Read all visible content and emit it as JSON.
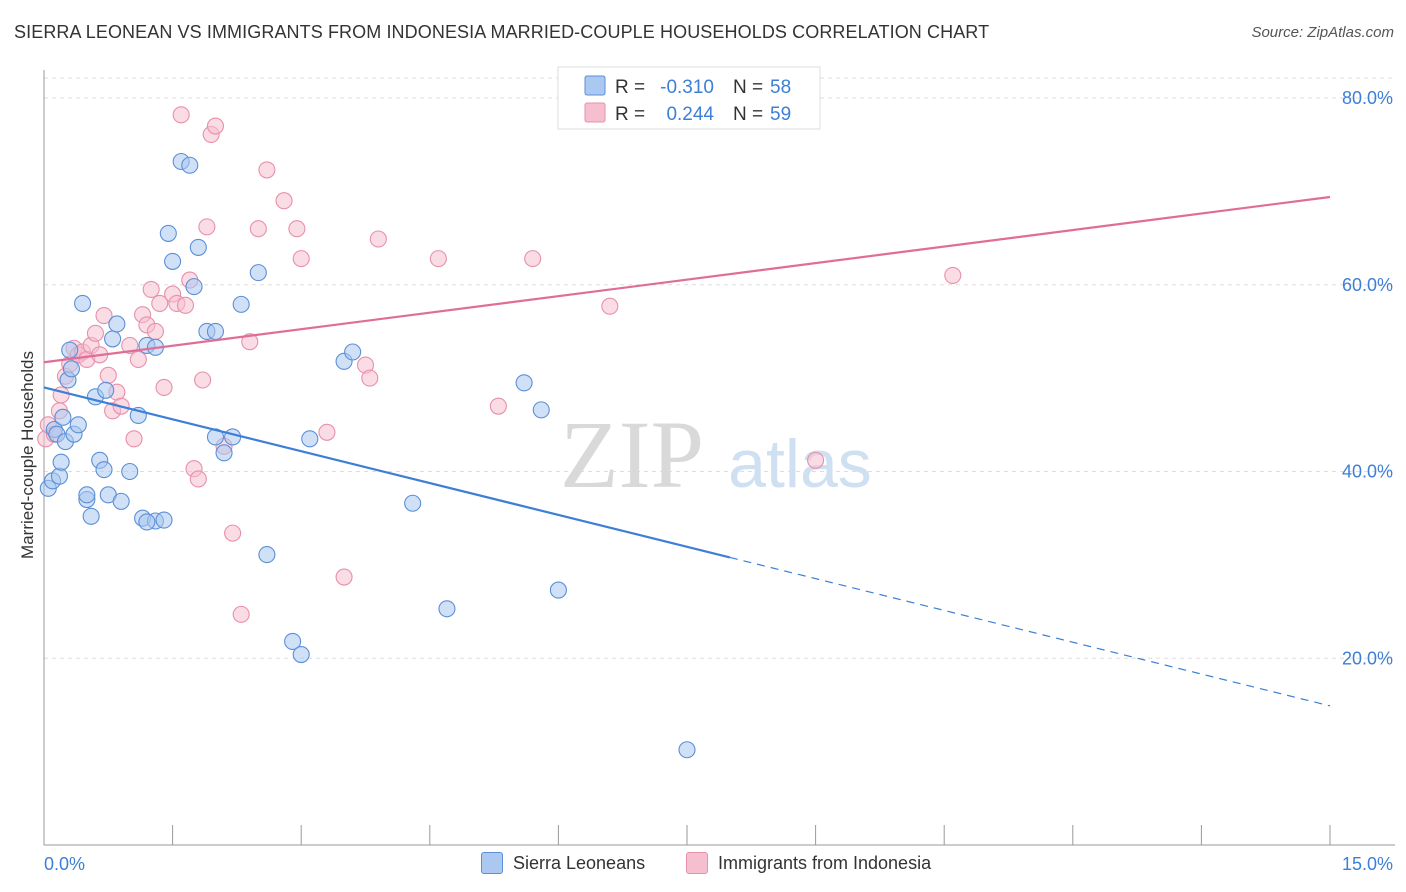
{
  "title": "SIERRA LEONEAN VS IMMIGRANTS FROM INDONESIA MARRIED-COUPLE HOUSEHOLDS CORRELATION CHART",
  "source": "Source: ZipAtlas.com",
  "watermark": {
    "zip": "ZIP",
    "atlas": "atlas"
  },
  "colors": {
    "blue_fill": "#aac8f0",
    "blue_stroke": "#5b8fd6",
    "blue_line": "#3d7fd6",
    "pink_fill": "#f6bfd0",
    "pink_stroke": "#e88fac",
    "pink_line": "#e06d98",
    "value_text": "#3d7fd6",
    "grid": "#dddddd"
  },
  "legend_stats": [
    {
      "r_label": "R =",
      "r_value": "-0.310",
      "n_label": "N =",
      "n_value": "58"
    },
    {
      "r_label": "R =",
      "r_value": "0.244",
      "n_label": "N =",
      "n_value": "59"
    }
  ],
  "chart_data": {
    "type": "scatter",
    "title": "SIERRA LEONEAN VS IMMIGRANTS FROM INDONESIA MARRIED-COUPLE HOUSEHOLDS CORRELATION CHART",
    "xlabel": "",
    "ylabel": "Married-couple Households",
    "xlim": [
      0,
      15
    ],
    "ylim": [
      0,
      83
    ],
    "x_tick_labels": [
      "0.0%",
      "15.0%"
    ],
    "y_ticks": [
      20,
      40,
      60,
      80
    ],
    "y_tick_labels": [
      "20.0%",
      "40.0%",
      "60.0%",
      "80.0%"
    ],
    "grid": "horizontal dashed",
    "legend_position": "bottom",
    "series": [
      {
        "name": "Sierra Leoneans",
        "color": "#aac8f0",
        "r": -0.31,
        "n": 58,
        "trend": {
          "x": [
            0.0,
            8.0
          ],
          "y": [
            49.0,
            30.8
          ]
        },
        "trend_extension": {
          "x": [
            8.0,
            15.0
          ],
          "y": [
            30.8,
            14.9
          ]
        },
        "x": [
          0.05,
          0.1,
          0.12,
          0.15,
          0.18,
          0.2,
          0.22,
          0.25,
          0.28,
          0.3,
          0.32,
          0.35,
          0.4,
          0.45,
          0.5,
          0.5,
          0.55,
          0.6,
          0.65,
          0.7,
          0.72,
          0.75,
          0.8,
          0.85,
          0.9,
          1.0,
          1.1,
          1.15,
          1.2,
          1.3,
          1.3,
          1.4,
          1.45,
          1.5,
          1.6,
          1.7,
          1.75,
          1.8,
          1.9,
          2.0,
          2.0,
          2.1,
          2.2,
          2.3,
          2.5,
          2.6,
          2.9,
          3.0,
          3.1,
          3.5,
          3.6,
          4.3,
          4.7,
          5.6,
          5.8,
          6.0,
          7.5,
          1.2
        ],
        "y": [
          38.2,
          39.0,
          44.5,
          44.0,
          39.5,
          41.0,
          45.8,
          43.2,
          49.8,
          53.0,
          51.0,
          44.0,
          45.0,
          58.0,
          37.0,
          37.5,
          35.2,
          48.0,
          41.2,
          40.2,
          48.7,
          37.5,
          54.2,
          55.8,
          36.8,
          40.0,
          46.0,
          35.0,
          53.5,
          53.3,
          34.7,
          34.8,
          65.5,
          62.5,
          73.2,
          72.8,
          59.8,
          64.0,
          55.0,
          55.0,
          43.7,
          42.0,
          43.7,
          57.9,
          61.3,
          31.1,
          21.8,
          20.4,
          43.5,
          51.8,
          52.8,
          36.6,
          25.3,
          49.5,
          46.6,
          27.3,
          10.2,
          34.6
        ]
      },
      {
        "name": "Immigrants from Indonesia",
        "color": "#f6bfd0",
        "r": 0.244,
        "n": 59,
        "trend": {
          "x": [
            0.0,
            15.0
          ],
          "y": [
            51.7,
            69.4
          ]
        },
        "x": [
          0.02,
          0.05,
          0.12,
          0.18,
          0.2,
          0.25,
          0.3,
          0.35,
          0.4,
          0.45,
          0.5,
          0.55,
          0.6,
          0.65,
          0.7,
          0.75,
          0.8,
          0.85,
          0.9,
          1.0,
          1.05,
          1.1,
          1.15,
          1.2,
          1.25,
          1.3,
          1.35,
          1.4,
          1.5,
          1.55,
          1.6,
          1.65,
          1.7,
          1.75,
          1.8,
          1.85,
          1.9,
          1.95,
          2.0,
          2.1,
          2.2,
          2.3,
          2.4,
          2.5,
          2.6,
          2.8,
          2.95,
          3.0,
          3.3,
          3.5,
          3.75,
          3.8,
          3.9,
          4.6,
          5.3,
          5.7,
          6.6,
          9.0,
          10.6
        ],
        "y": [
          43.5,
          45.0,
          44.0,
          46.5,
          48.2,
          50.2,
          51.5,
          53.2,
          52.5,
          52.8,
          52.0,
          53.5,
          54.8,
          52.5,
          56.7,
          50.3,
          46.5,
          48.5,
          47.0,
          53.5,
          43.5,
          52.0,
          56.8,
          55.7,
          59.5,
          55.0,
          58.0,
          49.0,
          59.0,
          58.0,
          78.2,
          57.8,
          60.5,
          40.3,
          39.2,
          49.8,
          66.2,
          76.1,
          77.0,
          42.7,
          33.4,
          24.7,
          53.9,
          66.0,
          72.3,
          69.0,
          66.0,
          62.8,
          44.2,
          28.7,
          51.4,
          50.0,
          64.9,
          62.8,
          47.0,
          62.8,
          57.7,
          41.2,
          61.0
        ]
      }
    ]
  }
}
